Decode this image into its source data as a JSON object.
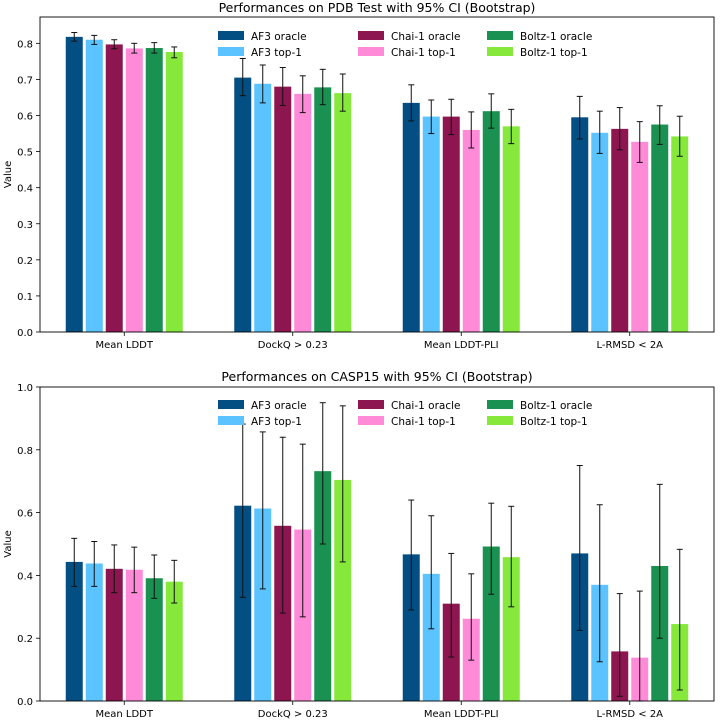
{
  "chart_data": [
    {
      "type": "bar",
      "title": "Performances on PDB Test with 95% CI (Bootstrap)",
      "xlabel": "",
      "ylabel": "Value",
      "ylim": [
        0,
        0.873
      ],
      "yticks": [
        "0.0",
        "0.1",
        "0.2",
        "0.3",
        "0.4",
        "0.5",
        "0.6",
        "0.7",
        "0.8"
      ],
      "ytick_values": [
        0,
        0.1,
        0.2,
        0.3,
        0.4,
        0.5,
        0.6,
        0.7,
        0.8
      ],
      "legend_placement": "top-center",
      "categories": [
        "Mean LDDT",
        "DockQ > 0.23",
        "Mean LDDT-PLI",
        "L-RMSD < 2A"
      ],
      "series": [
        {
          "name": "AF3 oracle",
          "color": "#034f84",
          "values": [
            0.818,
            0.705,
            0.635,
            0.595
          ],
          "ci_low": [
            0.806,
            0.655,
            0.585,
            0.535
          ],
          "ci_high": [
            0.83,
            0.758,
            0.685,
            0.653
          ]
        },
        {
          "name": "AF3 top-1",
          "color": "#5bc3ff",
          "values": [
            0.81,
            0.688,
            0.597,
            0.552
          ],
          "ci_low": [
            0.797,
            0.635,
            0.55,
            0.495
          ],
          "ci_high": [
            0.822,
            0.74,
            0.643,
            0.612
          ]
        },
        {
          "name": "Chai-1 oracle",
          "color": "#8e1650",
          "values": [
            0.797,
            0.68,
            0.597,
            0.563
          ],
          "ci_low": [
            0.785,
            0.628,
            0.547,
            0.505
          ],
          "ci_high": [
            0.81,
            0.733,
            0.645,
            0.622
          ]
        },
        {
          "name": "Chai-1 top-1",
          "color": "#ff8ad8",
          "values": [
            0.786,
            0.66,
            0.56,
            0.527
          ],
          "ci_low": [
            0.773,
            0.608,
            0.51,
            0.47
          ],
          "ci_high": [
            0.8,
            0.71,
            0.61,
            0.583
          ]
        },
        {
          "name": "Boltz-1 oracle",
          "color": "#1a9150",
          "values": [
            0.787,
            0.678,
            0.612,
            0.575
          ],
          "ci_low": [
            0.773,
            0.63,
            0.565,
            0.52
          ],
          "ci_high": [
            0.802,
            0.728,
            0.66,
            0.627
          ]
        },
        {
          "name": "Boltz-1 top-1",
          "color": "#86e83a",
          "values": [
            0.776,
            0.662,
            0.57,
            0.542
          ],
          "ci_low": [
            0.76,
            0.612,
            0.522,
            0.487
          ],
          "ci_high": [
            0.79,
            0.715,
            0.617,
            0.598
          ]
        }
      ]
    },
    {
      "type": "bar",
      "title": "Performances on CASP15 with 95% CI (Bootstrap)",
      "xlabel": "",
      "ylabel": "Value",
      "ylim": [
        0,
        1.0
      ],
      "yticks": [
        "0.0",
        "0.2",
        "0.4",
        "0.6",
        "0.8",
        "1.0"
      ],
      "ytick_values": [
        0,
        0.2,
        0.4,
        0.6,
        0.8,
        1.0
      ],
      "legend_placement": "top-center",
      "categories": [
        "Mean LDDT",
        "DockQ > 0.23",
        "Mean LDDT-PLI",
        "L-RMSD < 2A"
      ],
      "series": [
        {
          "name": "AF3 oracle",
          "color": "#034f84",
          "values": [
            0.443,
            0.622,
            0.467,
            0.47
          ],
          "ci_low": [
            0.365,
            0.33,
            0.29,
            0.225
          ],
          "ci_high": [
            0.518,
            0.882,
            0.64,
            0.75
          ]
        },
        {
          "name": "AF3 top-1",
          "color": "#5bc3ff",
          "values": [
            0.438,
            0.613,
            0.405,
            0.37
          ],
          "ci_low": [
            0.365,
            0.357,
            0.23,
            0.125
          ],
          "ci_high": [
            0.508,
            0.857,
            0.59,
            0.625
          ]
        },
        {
          "name": "Chai-1 oracle",
          "color": "#8e1650",
          "values": [
            0.421,
            0.558,
            0.31,
            0.158
          ],
          "ci_low": [
            0.345,
            0.28,
            0.14,
            0.015
          ],
          "ci_high": [
            0.497,
            0.84,
            0.47,
            0.342
          ]
        },
        {
          "name": "Chai-1 top-1",
          "color": "#ff8ad8",
          "values": [
            0.418,
            0.546,
            0.262,
            0.138
          ],
          "ci_low": [
            0.345,
            0.268,
            0.13,
            0.0
          ],
          "ci_high": [
            0.49,
            0.818,
            0.405,
            0.35
          ]
        },
        {
          "name": "Boltz-1 oracle",
          "color": "#1a9150",
          "values": [
            0.391,
            0.732,
            0.492,
            0.43
          ],
          "ci_low": [
            0.327,
            0.5,
            0.34,
            0.2
          ],
          "ci_high": [
            0.465,
            0.95,
            0.63,
            0.69
          ]
        },
        {
          "name": "Boltz-1 top-1",
          "color": "#86e83a",
          "values": [
            0.38,
            0.704,
            0.458,
            0.245
          ],
          "ci_low": [
            0.312,
            0.443,
            0.3,
            0.035
          ],
          "ci_high": [
            0.448,
            0.94,
            0.62,
            0.483
          ]
        }
      ]
    }
  ]
}
